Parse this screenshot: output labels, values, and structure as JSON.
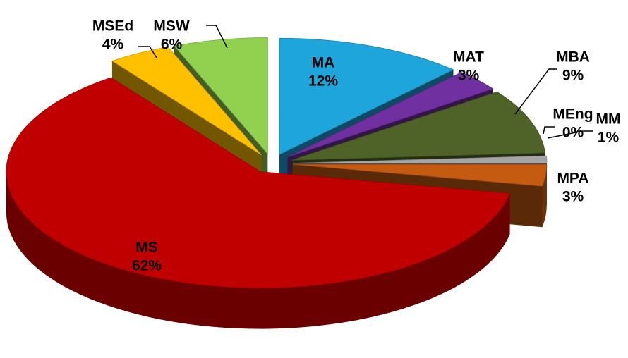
{
  "chart_data": {
    "type": "pie",
    "categories": [
      "MA",
      "MAT",
      "MBA",
      "MEng",
      "MM",
      "MPA",
      "MS",
      "MSEd",
      "MSW"
    ],
    "values": [
      12,
      3,
      9,
      0,
      1,
      3,
      62,
      4,
      6
    ],
    "value_labels": [
      "12%",
      "3%",
      "9%",
      "0%",
      "1%",
      "3%",
      "62%",
      "4%",
      "6%"
    ],
    "colors": [
      "#1ea5dc",
      "#7030a0",
      "#4f6228",
      "#c6d9f1",
      "#a6a6a6",
      "#c55a11",
      "#c00000",
      "#ffc000",
      "#92d050"
    ],
    "exploded": true,
    "three_d": true
  }
}
